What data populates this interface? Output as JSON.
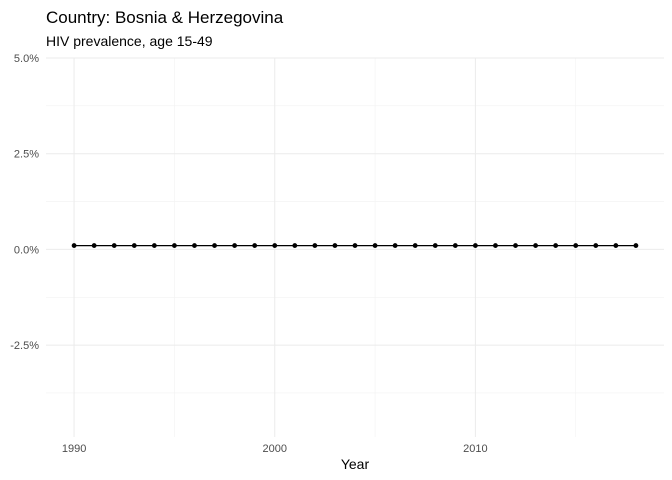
{
  "chart_data": {
    "type": "line",
    "title": "Country: Bosnia & Herzegovina",
    "subtitle": "HIV prevalence, age 15-49",
    "xlabel": "Year",
    "ylabel": "",
    "x": [
      1990,
      1991,
      1992,
      1993,
      1994,
      1995,
      1996,
      1997,
      1998,
      1999,
      2000,
      2001,
      2002,
      2003,
      2004,
      2005,
      2006,
      2007,
      2008,
      2009,
      2010,
      2011,
      2012,
      2013,
      2014,
      2015,
      2016,
      2017,
      2018
    ],
    "series": [
      {
        "values": [
          0.1,
          0.1,
          0.1,
          0.1,
          0.1,
          0.1,
          0.1,
          0.1,
          0.1,
          0.1,
          0.1,
          0.1,
          0.1,
          0.1,
          0.1,
          0.1,
          0.1,
          0.1,
          0.1,
          0.1,
          0.1,
          0.1,
          0.1,
          0.1,
          0.1,
          0.1,
          0.1,
          0.1,
          0.1
        ]
      }
    ],
    "xlim": [
      1988.6,
      2019.4
    ],
    "ylim": [
      -4.9,
      5.0
    ],
    "x_ticks": [
      1990,
      2000,
      2010
    ],
    "x_tick_labels": [
      "1990",
      "2000",
      "2010"
    ],
    "y_ticks": [
      -2.5,
      0,
      2.5,
      5
    ],
    "y_tick_labels": [
      "-2.5%",
      "0.0%",
      "2.5%",
      "5.0%"
    ],
    "grid": true,
    "line_color": "#000000",
    "point_color": "#000000"
  }
}
